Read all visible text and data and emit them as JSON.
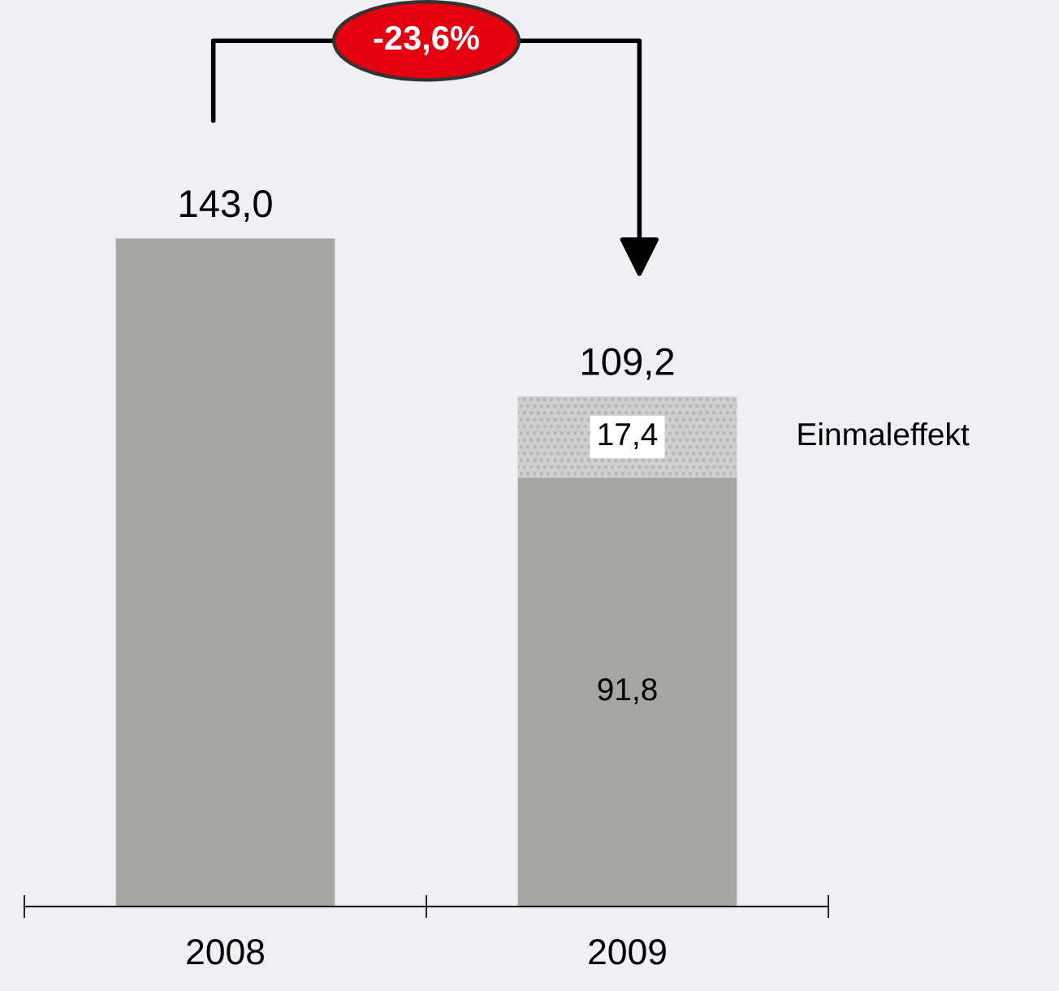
{
  "chart_data": {
    "type": "bar",
    "stacked": true,
    "categories": [
      "2008",
      "2009"
    ],
    "series": [
      {
        "values": [
          143.0,
          91.8
        ],
        "color": "#a8a6a1",
        "value_labels": [
          null,
          "91,8"
        ]
      },
      {
        "name": "Einmaleffekt",
        "values": [
          null,
          17.4
        ],
        "color": "#cfcfcf",
        "value_labels": [
          null,
          "17,4"
        ]
      }
    ],
    "totals": [
      "143,0",
      "109,2"
    ],
    "annotations": [
      "-23,6%"
    ],
    "grid": false,
    "legend": false
  }
}
